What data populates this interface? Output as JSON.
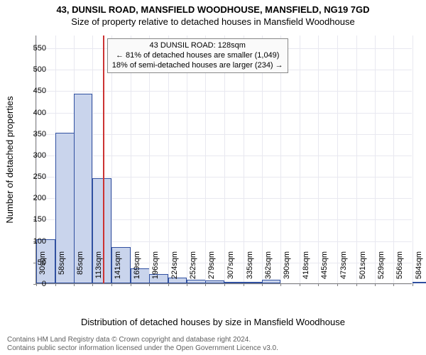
{
  "title": "43, DUNSIL ROAD, MANSFIELD WOODHOUSE, MANSFIELD, NG19 7GD",
  "subtitle": "Size of property relative to detached houses in Mansfield Woodhouse",
  "ylabel": "Number of detached properties",
  "xlabel": "Distribution of detached houses by size in Mansfield Woodhouse",
  "chart": {
    "type": "histogram",
    "ymin": 0,
    "ymax": 580,
    "yticks": [
      0,
      50,
      100,
      150,
      200,
      250,
      300,
      350,
      400,
      450,
      500,
      550
    ],
    "xpositions": [
      30,
      58,
      85,
      113,
      141,
      169,
      196,
      224,
      252,
      279,
      307,
      335,
      362,
      390,
      418,
      445,
      473,
      501,
      529,
      556,
      584
    ],
    "xlabels": [
      "30sqm",
      "58sqm",
      "85sqm",
      "113sqm",
      "141sqm",
      "169sqm",
      "196sqm",
      "224sqm",
      "252sqm",
      "279sqm",
      "307sqm",
      "335sqm",
      "362sqm",
      "390sqm",
      "418sqm",
      "445sqm",
      "473sqm",
      "501sqm",
      "529sqm",
      "556sqm",
      "584sqm"
    ],
    "values": [
      103,
      352,
      443,
      245,
      85,
      35,
      22,
      14,
      9,
      6,
      4,
      2,
      9,
      0,
      0,
      0,
      0,
      0,
      0,
      0,
      2
    ],
    "bar_color": "#c9d4ec",
    "bar_border": "#3050a0",
    "grid_color": "#e8e8f0",
    "axis_color": "#808080",
    "background": "#ffffff",
    "marker": {
      "x": 128,
      "color": "#cc3333"
    }
  },
  "callout": {
    "line1": "43 DUNSIL ROAD: 128sqm",
    "line2": "← 81% of detached houses are smaller (1,049)",
    "line3": "18% of semi-detached houses are larger (234) →"
  },
  "footer": {
    "line1": "Contains HM Land Registry data © Crown copyright and database right 2024.",
    "line2": "Contains public sector information licensed under the Open Government Licence v3.0."
  }
}
